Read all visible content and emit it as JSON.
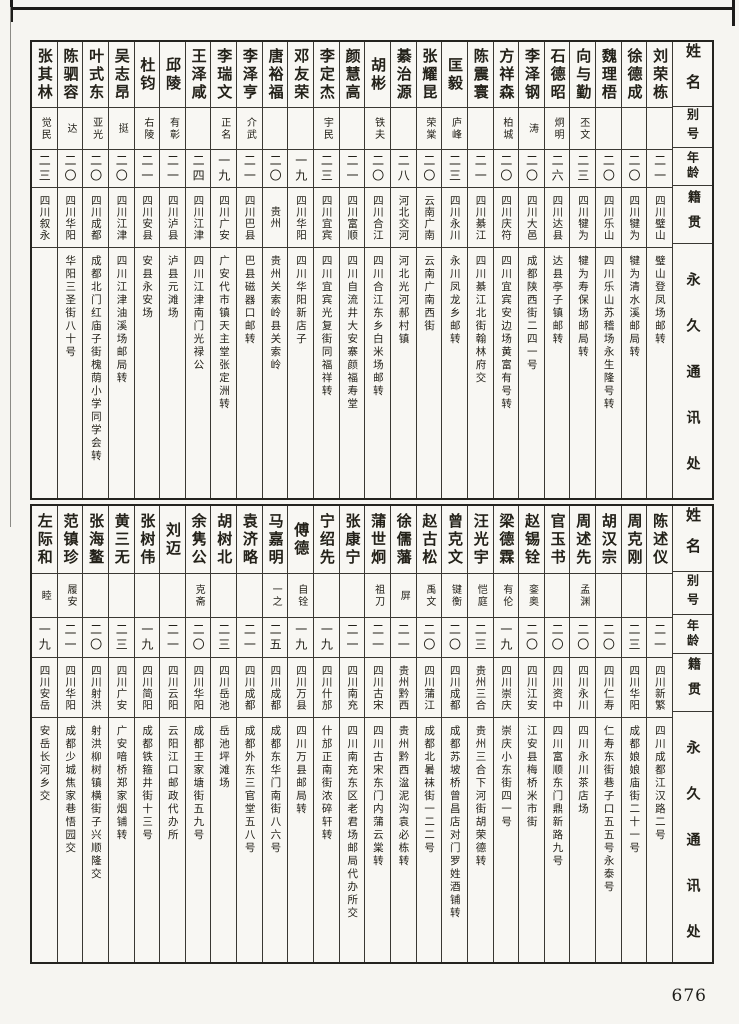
{
  "page": {
    "number": "676"
  },
  "colors": {
    "paper": "#f6f5f1",
    "ink": "#24231f"
  },
  "headers": {
    "name": "姓名",
    "alias": "别号",
    "age": "年龄",
    "native_place": "籍贯",
    "address": "永久通讯处"
  },
  "tables": [
    {
      "entries": [
        {
          "name": "刘荣栋",
          "alias": "",
          "age": "二一",
          "native_place": "四川璧山",
          "address": "璧山登凤场邮转"
        },
        {
          "name": "徐德成",
          "alias": "",
          "age": "二〇",
          "native_place": "四川犍为",
          "address": "犍为清水溪邮局转"
        },
        {
          "name": "魏理梧",
          "alias": "",
          "age": "二〇",
          "native_place": "四川乐山",
          "address": "四川乐山苏稽场永生隆号转"
        },
        {
          "name": "向与勤",
          "alias": "丕文",
          "age": "二三",
          "native_place": "四川犍为",
          "address": "犍为寿保场邮局转"
        },
        {
          "name": "石德昭",
          "alias": "炯明",
          "age": "二六",
          "native_place": "四川达县",
          "address": "达县亭子镇邮转"
        },
        {
          "name": "李泽钢",
          "alias": "涛",
          "age": "二〇",
          "native_place": "四川大邑",
          "address": "成都陕西街二四一号"
        },
        {
          "name": "方祥森",
          "alias": "柏城",
          "age": "二〇",
          "native_place": "四川庆符",
          "address": "四川宜宾安边场黄富有号转"
        },
        {
          "name": "陈震寰",
          "alias": "",
          "age": "二一",
          "native_place": "四川綦江",
          "address": "四川綦江北街翰林府交"
        },
        {
          "name": "匡毅",
          "alias": "庐峰",
          "age": "二三",
          "native_place": "四川永川",
          "address": "永川凤龙乡邮转"
        },
        {
          "name": "张耀昆",
          "alias": "荣棠",
          "age": "二〇",
          "native_place": "云南广南",
          "address": "云南广南西街"
        },
        {
          "name": "綦治源",
          "alias": "",
          "age": "二八",
          "native_place": "河北交河",
          "address": "河北光河郝村镇"
        },
        {
          "name": "胡彬",
          "alias": "铁夫",
          "age": "二〇",
          "native_place": "四川合江",
          "address": "四川合江东乡白米场邮转"
        },
        {
          "name": "颜慧高",
          "alias": "",
          "age": "二一",
          "native_place": "四川富顺",
          "address": "四川自流井大安寨颜福寿堂"
        },
        {
          "name": "李定杰",
          "alias": "宇民",
          "age": "二三",
          "native_place": "四川宜宾",
          "address": "四川宜宾光复街同福祥转"
        },
        {
          "name": "邓友荣",
          "alias": "",
          "age": "一九",
          "native_place": "四川华阳",
          "address": "四川华阳新店子"
        },
        {
          "name": "唐裕福",
          "alias": "",
          "age": "二〇",
          "native_place": "贵州",
          "address": "贵州关索岭县关索岭"
        },
        {
          "name": "李泽亨",
          "alias": "介武",
          "age": "二一",
          "native_place": "四川巴县",
          "address": "巴县磁器口邮转"
        },
        {
          "name": "李瑞文",
          "alias": "正名",
          "age": "一九",
          "native_place": "四川广安",
          "address": "广安代市镇天主堂张定洲转"
        },
        {
          "name": "王泽咸",
          "alias": "",
          "age": "二四",
          "native_place": "四川江津",
          "address": "四川江津南门光禄公"
        },
        {
          "name": "邱陵",
          "alias": "有彰",
          "age": "二一",
          "native_place": "四川泸县",
          "address": "泸县元滩场"
        },
        {
          "name": "杜钧",
          "alias": "右陵",
          "age": "二一",
          "native_place": "四川安县",
          "address": "安县永安场"
        },
        {
          "name": "吴志昂",
          "alias": "挺",
          "age": "二〇",
          "native_place": "四川江津",
          "address": "四川江津油溪场邮局转"
        },
        {
          "name": "叶式东",
          "alias": "亚光",
          "age": "二〇",
          "native_place": "四川成都",
          "address": "成都北门红庙子街槐荫小学同学会转"
        },
        {
          "name": "陈驷容",
          "alias": "达",
          "age": "二〇",
          "native_place": "四川华阳",
          "address": "华阳三圣街八十号"
        },
        {
          "name": "张其林",
          "alias": "觉民",
          "age": "二三",
          "native_place": "四川叙永",
          "address": ""
        }
      ]
    },
    {
      "entries": [
        {
          "name": "陈述仪",
          "alias": "",
          "age": "二一",
          "native_place": "四川新繁",
          "address": "四川成都江汉路二号"
        },
        {
          "name": "周克刚",
          "alias": "",
          "age": "二三",
          "native_place": "四川华阳",
          "address": "成都娘娘庙街二十一号"
        },
        {
          "name": "胡汉宗",
          "alias": "",
          "age": "二〇",
          "native_place": "四川仁寿",
          "address": "仁寿东街巷子口五五号永泰号"
        },
        {
          "name": "周述先",
          "alias": "孟渊",
          "age": "二〇",
          "native_place": "四川永川",
          "address": "四川永川茶店场"
        },
        {
          "name": "官玉书",
          "alias": "",
          "age": "二〇",
          "native_place": "四川资中",
          "address": "四川富顺东门鼎新路九号"
        },
        {
          "name": "赵锡铨",
          "alias": "銮奥",
          "age": "二〇",
          "native_place": "四川江安",
          "address": "江安县梅桥米市街"
        },
        {
          "name": "梁德霖",
          "alias": "有伦",
          "age": "一九",
          "native_place": "四川崇庆",
          "address": "崇庆小东街四一号"
        },
        {
          "name": "汪光宇",
          "alias": "恺庭",
          "age": "二三",
          "native_place": "贵州三合",
          "address": "贵州三合下河街胡荣德转"
        },
        {
          "name": "曾克文",
          "alias": "键衡",
          "age": "二〇",
          "native_place": "四川成都",
          "address": "成都苏坡桥曾昌店对门罗姓酒铺转"
        },
        {
          "name": "赵古松",
          "alias": "禹文",
          "age": "二〇",
          "native_place": "四川蒲江",
          "address": "成都北暑袜街一二二号"
        },
        {
          "name": "徐儒藩",
          "alias": "屏",
          "age": "二一",
          "native_place": "贵州黔西",
          "address": "贵州黔西湓泥沟袁必栋转"
        },
        {
          "name": "蒲世炯",
          "alias": "祖刀",
          "age": "二一",
          "native_place": "四川古宋",
          "address": "四川古宋东门内蒲云棠转"
        },
        {
          "name": "张康宁",
          "alias": "",
          "age": "二一",
          "native_place": "四川南充",
          "address": "四川南充东区老君场邮局代办所交"
        },
        {
          "name": "宁绍先",
          "alias": "",
          "age": "一九",
          "native_place": "四川什邡",
          "address": "什邡正南街浓碎轩转"
        },
        {
          "name": "傅德",
          "alias": "自铨",
          "age": "一九",
          "native_place": "四川万县",
          "address": "四川万县邮局转"
        },
        {
          "name": "马嘉明",
          "alias": "一之",
          "age": "二五",
          "native_place": "四川成都",
          "address": "成都东华门南街八六号"
        },
        {
          "name": "袁济略",
          "alias": "",
          "age": "二一",
          "native_place": "四川成都",
          "address": "成都外东三官堂五八号"
        },
        {
          "name": "胡树北",
          "alias": "",
          "age": "二三",
          "native_place": "四川岳池",
          "address": "岳池坪滩场"
        },
        {
          "name": "余隽公",
          "alias": "克斋",
          "age": "二〇",
          "native_place": "四川华阳",
          "address": "成都王家塘街五九号"
        },
        {
          "name": "刘迈",
          "alias": "",
          "age": "二一",
          "native_place": "四川云阳",
          "address": "云阳江口邮政代办所"
        },
        {
          "name": "张树伟",
          "alias": "",
          "age": "一九",
          "native_place": "四川简阳",
          "address": "成都铁箍井街十三号"
        },
        {
          "name": "黄三无",
          "alias": "",
          "age": "二三",
          "native_place": "四川广安",
          "address": "广安喑桥郑家烟铺转"
        },
        {
          "name": "张海鳌",
          "alias": "",
          "age": "二〇",
          "native_place": "四川射洪",
          "address": "射洪柳树镇横街子兴顺隆交"
        },
        {
          "name": "范镇珍",
          "alias": "履安",
          "age": "二一",
          "native_place": "四川华阳",
          "address": "成都少城焦家巷悟园交"
        },
        {
          "name": "左际和",
          "alias": "睦",
          "age": "一九",
          "native_place": "四川安岳",
          "address": "安岳长河乡交"
        }
      ]
    }
  ]
}
